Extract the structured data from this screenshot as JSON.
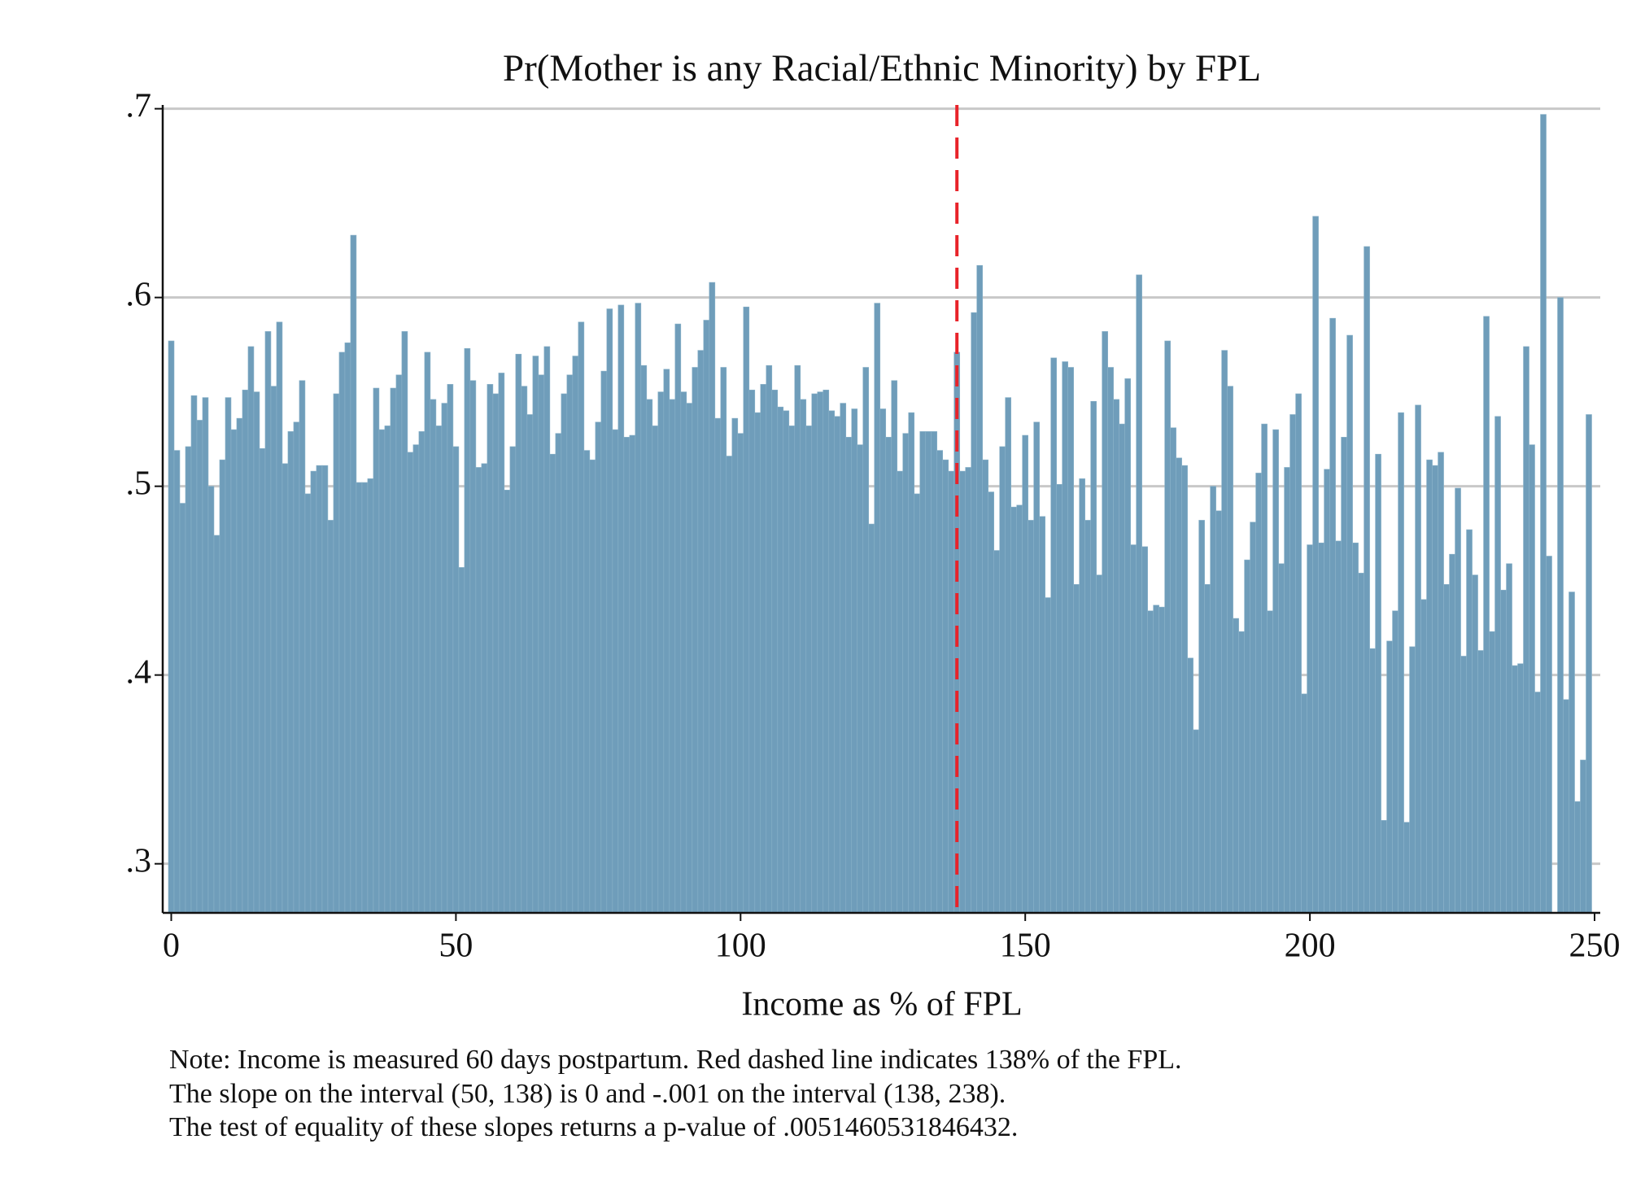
{
  "chart_data": {
    "type": "bar",
    "title": "Pr(Mother is any Racial/Ethnic Minority) by FPL",
    "x_label": "Income as % of FPL",
    "notes": [
      "Note: Income is measured 60 days postpartum. Red dashed line indicates 138% of the FPL.",
      "The slope on the interval (50, 138) is 0 and -.001 on the interval (138, 238).",
      "The test of equality of these slopes returns a p-value of .0051460531846432."
    ],
    "color": "#6f9dba",
    "grid": true,
    "reference_line": {
      "x": 138,
      "color": "#e8232a",
      "style": "dashed"
    },
    "xlim": [
      -1.5,
      251
    ],
    "ylim": [
      0.274,
      0.702
    ],
    "xticks": [
      0,
      50,
      100,
      150,
      200,
      250
    ],
    "yticks": [
      {
        "value": 0.3,
        "label": ".3"
      },
      {
        "value": 0.4,
        "label": ".4"
      },
      {
        "value": 0.5,
        "label": ".5"
      },
      {
        "value": 0.6,
        "label": ".6"
      },
      {
        "value": 0.7,
        "label": ".7"
      }
    ],
    "x": [
      0,
      1,
      2,
      3,
      4,
      5,
      6,
      7,
      8,
      9,
      10,
      11,
      12,
      13,
      14,
      15,
      16,
      17,
      18,
      19,
      20,
      21,
      22,
      23,
      24,
      25,
      26,
      27,
      28,
      29,
      30,
      31,
      32,
      33,
      34,
      35,
      36,
      37,
      38,
      39,
      40,
      41,
      42,
      43,
      44,
      45,
      46,
      47,
      48,
      49,
      50,
      51,
      52,
      53,
      54,
      55,
      56,
      57,
      58,
      59,
      60,
      61,
      62,
      63,
      64,
      65,
      66,
      67,
      68,
      69,
      70,
      71,
      72,
      73,
      74,
      75,
      76,
      77,
      78,
      79,
      80,
      81,
      82,
      83,
      84,
      85,
      86,
      87,
      88,
      89,
      90,
      91,
      92,
      93,
      94,
      95,
      96,
      97,
      98,
      99,
      100,
      101,
      102,
      103,
      104,
      105,
      106,
      107,
      108,
      109,
      110,
      111,
      112,
      113,
      114,
      115,
      116,
      117,
      118,
      119,
      120,
      121,
      122,
      123,
      124,
      125,
      126,
      127,
      128,
      129,
      130,
      131,
      132,
      133,
      134,
      135,
      136,
      137,
      138,
      139,
      140,
      141,
      142,
      143,
      144,
      145,
      146,
      147,
      148,
      149,
      150,
      151,
      152,
      153,
      154,
      155,
      156,
      157,
      158,
      159,
      160,
      161,
      162,
      163,
      164,
      165,
      166,
      167,
      168,
      169,
      170,
      171,
      172,
      173,
      174,
      175,
      176,
      177,
      178,
      179,
      180,
      181,
      182,
      183,
      184,
      185,
      186,
      187,
      188,
      189,
      190,
      191,
      192,
      193,
      194,
      195,
      196,
      197,
      198,
      199,
      200,
      201,
      202,
      203,
      204,
      205,
      206,
      207,
      208,
      209,
      210,
      211,
      212,
      213,
      214,
      215,
      216,
      217,
      218,
      219,
      220,
      221,
      222,
      223,
      224,
      225,
      226,
      227,
      228,
      229,
      230,
      231,
      232,
      233,
      234,
      235,
      236,
      237,
      238,
      239,
      240,
      241,
      242,
      243,
      244,
      245,
      246,
      247,
      248,
      249
    ],
    "values": [
      0.577,
      0.519,
      0.491,
      0.521,
      0.548,
      0.535,
      0.547,
      0.5,
      0.474,
      0.514,
      0.547,
      0.53,
      0.536,
      0.551,
      0.574,
      0.55,
      0.52,
      0.582,
      0.553,
      0.587,
      0.512,
      0.529,
      0.534,
      0.556,
      0.496,
      0.508,
      0.511,
      0.511,
      0.482,
      0.549,
      0.571,
      0.576,
      0.633,
      0.502,
      0.502,
      0.504,
      0.552,
      0.53,
      0.532,
      0.552,
      0.559,
      0.582,
      0.518,
      0.522,
      0.529,
      0.571,
      0.546,
      0.532,
      0.544,
      0.554,
      0.521,
      0.457,
      0.573,
      0.556,
      0.51,
      0.512,
      0.554,
      0.549,
      0.56,
      0.498,
      0.521,
      0.57,
      0.553,
      0.538,
      0.569,
      0.559,
      0.574,
      0.517,
      0.528,
      0.549,
      0.559,
      0.569,
      0.587,
      0.519,
      0.514,
      0.534,
      0.561,
      0.594,
      0.53,
      0.596,
      0.526,
      0.527,
      0.597,
      0.564,
      0.546,
      0.532,
      0.55,
      0.562,
      0.546,
      0.586,
      0.55,
      0.544,
      0.563,
      0.572,
      0.588,
      0.608,
      0.536,
      0.563,
      0.516,
      0.536,
      0.528,
      0.595,
      0.551,
      0.539,
      0.554,
      0.564,
      0.551,
      0.542,
      0.54,
      0.532,
      0.564,
      0.546,
      0.532,
      0.549,
      0.55,
      0.551,
      0.54,
      0.537,
      0.544,
      0.526,
      0.541,
      0.522,
      0.563,
      0.48,
      0.597,
      0.541,
      0.526,
      0.556,
      0.508,
      0.528,
      0.539,
      0.496,
      0.529,
      0.529,
      0.529,
      0.519,
      0.514,
      0.508,
      0.571,
      0.508,
      0.51,
      0.592,
      0.617,
      0.514,
      0.497,
      0.466,
      0.521,
      0.547,
      0.489,
      0.49,
      0.527,
      0.482,
      0.534,
      0.484,
      0.441,
      0.568,
      0.501,
      0.566,
      0.563,
      0.448,
      0.504,
      0.482,
      0.545,
      0.453,
      0.582,
      0.563,
      0.546,
      0.533,
      0.557,
      0.469,
      0.612,
      0.468,
      0.434,
      0.437,
      0.436,
      0.577,
      0.531,
      0.515,
      0.511,
      0.409,
      0.371,
      0.482,
      0.448,
      0.5,
      0.487,
      0.572,
      0.553,
      0.43,
      0.423,
      0.461,
      0.481,
      0.507,
      0.533,
      0.434,
      0.53,
      0.459,
      0.51,
      0.538,
      0.549,
      0.39,
      0.469,
      0.643,
      0.47,
      0.509,
      0.589,
      0.471,
      0.526,
      0.58,
      0.47,
      0.454,
      0.627,
      0.414,
      0.517,
      0.323,
      0.418,
      0.434,
      0.539,
      0.322,
      0.415,
      0.543,
      0.44,
      0.514,
      0.511,
      0.518,
      0.448,
      0.464,
      0.499,
      0.41,
      0.477,
      0.453,
      0.413,
      0.59,
      0.423,
      0.537,
      0.445,
      0.459,
      0.405,
      0.406,
      0.574,
      0.522,
      0.391,
      0.697,
      0.463,
      null,
      0.6,
      0.387,
      0.444,
      0.333,
      0.355,
      0.538
    ]
  }
}
